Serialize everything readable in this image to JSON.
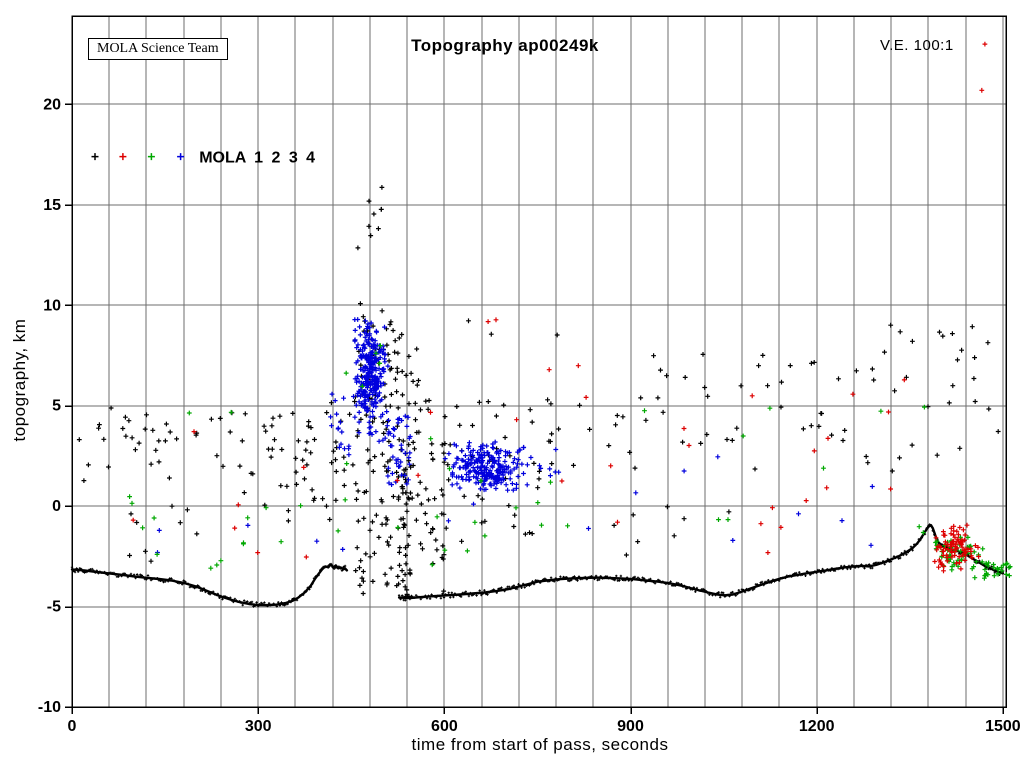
{
  "chart_data": {
    "type": "scatter",
    "title": "Topography ap00249k",
    "xlabel": "time from start of pass, seconds",
    "ylabel": "topography, km",
    "xlim": [
      0,
      1505
    ],
    "ylim": [
      -10,
      24.4
    ],
    "x_ticks": [
      0,
      300,
      600,
      900,
      1200,
      1500
    ],
    "y_ticks": [
      -10,
      -5,
      0,
      5,
      10,
      15,
      20
    ],
    "x_grid_step_seconds": 60,
    "y_grid_step_km": 5,
    "grid": true,
    "marker": "plus",
    "annotations": {
      "ve_label": "V.E. 100:1",
      "credit_box": "MOLA Science Team"
    },
    "legend": {
      "label": "MOLA 1 2 3 4",
      "marker_positions_t": [
        37,
        82,
        128,
        175
      ],
      "marker_z": 17.4,
      "text_t": 205,
      "series": [
        {
          "name": "MOLA 1",
          "color": "#000000"
        },
        {
          "name": "MOLA 2",
          "color": "#dd0000"
        },
        {
          "name": "MOLA 3",
          "color": "#00a800"
        },
        {
          "name": "MOLA 4",
          "color": "#0000dd"
        }
      ]
    },
    "ground_profile": {
      "series": "MOLA 1",
      "color": "#000000",
      "segments": [
        [
          [
            0,
            -3.15
          ],
          [
            20,
            -3.2
          ],
          [
            40,
            -3.28
          ],
          [
            60,
            -3.35
          ],
          [
            80,
            -3.42
          ],
          [
            100,
            -3.5
          ],
          [
            120,
            -3.57
          ],
          [
            140,
            -3.63
          ],
          [
            160,
            -3.7
          ],
          [
            180,
            -3.82
          ],
          [
            200,
            -4.0
          ],
          [
            220,
            -4.25
          ],
          [
            240,
            -4.5
          ],
          [
            255,
            -4.65
          ],
          [
            270,
            -4.78
          ],
          [
            285,
            -4.87
          ],
          [
            300,
            -4.92
          ],
          [
            315,
            -4.93
          ],
          [
            330,
            -4.9
          ],
          [
            345,
            -4.82
          ],
          [
            355,
            -4.72
          ],
          [
            365,
            -4.55
          ],
          [
            375,
            -4.3
          ],
          [
            385,
            -3.95
          ],
          [
            392,
            -3.6
          ],
          [
            398,
            -3.35
          ],
          [
            403,
            -3.15
          ],
          [
            408,
            -3.0
          ],
          [
            413,
            -3.05
          ],
          [
            417,
            -2.9
          ],
          [
            421,
            -3.05
          ],
          [
            425,
            -2.95
          ],
          [
            429,
            -3.1
          ],
          [
            433,
            -3.05
          ],
          [
            437,
            -3.15
          ],
          [
            440,
            -3.1
          ],
          [
            443,
            -3.2
          ]
        ],
        [
          [
            527,
            -4.55
          ],
          [
            545,
            -4.58
          ],
          [
            565,
            -4.52
          ],
          [
            585,
            -4.48
          ],
          [
            605,
            -4.44
          ],
          [
            625,
            -4.4
          ],
          [
            645,
            -4.35
          ],
          [
            665,
            -4.3
          ],
          [
            685,
            -4.22
          ],
          [
            705,
            -4.12
          ],
          [
            720,
            -4.0
          ],
          [
            735,
            -3.88
          ],
          [
            750,
            -3.76
          ],
          [
            765,
            -3.7
          ],
          [
            785,
            -3.64
          ],
          [
            805,
            -3.6
          ],
          [
            825,
            -3.58
          ],
          [
            845,
            -3.56
          ],
          [
            865,
            -3.58
          ],
          [
            885,
            -3.6
          ],
          [
            905,
            -3.64
          ],
          [
            925,
            -3.7
          ],
          [
            945,
            -3.76
          ],
          [
            965,
            -3.85
          ],
          [
            985,
            -3.98
          ],
          [
            1005,
            -4.15
          ],
          [
            1025,
            -4.3
          ],
          [
            1040,
            -4.4
          ],
          [
            1052,
            -4.44
          ],
          [
            1065,
            -4.4
          ],
          [
            1080,
            -4.25
          ],
          [
            1095,
            -4.08
          ],
          [
            1110,
            -3.92
          ],
          [
            1125,
            -3.76
          ],
          [
            1140,
            -3.62
          ],
          [
            1155,
            -3.5
          ],
          [
            1170,
            -3.42
          ],
          [
            1185,
            -3.34
          ],
          [
            1200,
            -3.27
          ],
          [
            1215,
            -3.2
          ],
          [
            1230,
            -3.12
          ],
          [
            1245,
            -3.05
          ],
          [
            1260,
            -3.0
          ],
          [
            1272,
            -2.97
          ],
          [
            1284,
            -3.0
          ],
          [
            1296,
            -2.92
          ],
          [
            1308,
            -2.8
          ],
          [
            1320,
            -2.65
          ],
          [
            1332,
            -2.5
          ],
          [
            1344,
            -2.3
          ],
          [
            1354,
            -2.1
          ],
          [
            1362,
            -1.85
          ],
          [
            1368,
            -1.6
          ],
          [
            1373,
            -1.35
          ],
          [
            1377,
            -1.15
          ],
          [
            1381,
            -1.0
          ],
          [
            1384,
            -0.95
          ],
          [
            1387,
            -1.1
          ],
          [
            1391,
            -1.45
          ],
          [
            1395,
            -1.75
          ],
          [
            1400,
            -1.95
          ],
          [
            1408,
            -2.05
          ],
          [
            1416,
            -2.15
          ],
          [
            1424,
            -2.2
          ],
          [
            1432,
            -2.3
          ],
          [
            1440,
            -2.4
          ],
          [
            1448,
            -2.55
          ],
          [
            1456,
            -2.7
          ],
          [
            1464,
            -2.85
          ],
          [
            1472,
            -3.0
          ],
          [
            1480,
            -3.1
          ],
          [
            1490,
            -3.25
          ],
          [
            1500,
            -3.35
          ]
        ]
      ]
    },
    "clusters": [
      {
        "series": "MOLA 1",
        "dist": "u",
        "t": [
          10,
          450
        ],
        "z": [
          1.9,
          4.9
        ],
        "n": 55
      },
      {
        "series": "MOLA 1",
        "dist": "u",
        "t": [
          15,
          450
        ],
        "z": [
          -0.5,
          1.9
        ],
        "n": 10
      },
      {
        "series": "MOLA 1",
        "dist": "u",
        "t": [
          60,
          260
        ],
        "z": [
          -2.8,
          -0.8
        ],
        "n": 6
      },
      {
        "series": "MOLA 1",
        "dist": "u",
        "t": [
          300,
          455
        ],
        "z": [
          -1.0,
          5.2
        ],
        "n": 30
      },
      {
        "series": "MOLA 1",
        "dist": "u",
        "t": [
          455,
          560
        ],
        "z": [
          -4.4,
          9.5
        ],
        "n": 150
      },
      {
        "series": "MOLA 1",
        "dist": "u",
        "t": [
          458,
          500
        ],
        "z": [
          9.5,
          16.0
        ],
        "n": 11
      },
      {
        "series": "MOLA 1",
        "dist": "u",
        "t": [
          525,
          545
        ],
        "z": [
          -4.5,
          2.0
        ],
        "n": 35
      },
      {
        "series": "MOLA 1",
        "dist": "u",
        "t": [
          555,
          600
        ],
        "z": [
          -4.4,
          3.5
        ],
        "n": 30
      },
      {
        "series": "MOLA 1",
        "dist": "u",
        "t": [
          600,
          760
        ],
        "z": [
          -2.0,
          5.2
        ],
        "n": 30
      },
      {
        "series": "MOLA 1",
        "dist": "u",
        "t": [
          560,
          1500
        ],
        "z": [
          1.6,
          5.4
        ],
        "n": 65
      },
      {
        "series": "MOLA 1",
        "dist": "u",
        "t": [
          900,
          1500
        ],
        "z": [
          5.4,
          7.6
        ],
        "n": 25
      },
      {
        "series": "MOLA 1",
        "dist": "u",
        "t": [
          1250,
          1480
        ],
        "z": [
          7.6,
          9.4
        ],
        "n": 10
      },
      {
        "series": "MOLA 1",
        "dist": "u",
        "t": [
          780,
          1100
        ],
        "z": [
          -3.0,
          0.0
        ],
        "n": 8
      },
      {
        "series": "MOLA 1",
        "dist": "u",
        "t": [
          600,
          900
        ],
        "z": [
          8.5,
          9.5
        ],
        "n": 3
      },
      {
        "series": "MOLA 2",
        "dist": "u",
        "t": [
          40,
          1360
        ],
        "z": [
          -3.0,
          5.0
        ],
        "n": 26
      },
      {
        "series": "MOLA 2",
        "dist": "u",
        "t": [
          600,
          1350
        ],
        "z": [
          5.0,
          7.0
        ],
        "n": 6
      },
      {
        "series": "MOLA 2",
        "dist": "u",
        "t": [
          660,
          720
        ],
        "z": [
          8.9,
          9.4
        ],
        "n": 2
      },
      {
        "series": "MOLA 2",
        "dist": "g",
        "ct": 1420,
        "cz": -2.1,
        "st": 18,
        "sz": 0.55,
        "n": 90,
        "clip_t": [
          1388,
          1462
        ],
        "clip_z": [
          -3.4,
          -0.9
        ]
      },
      {
        "series": "MOLA 3",
        "dist": "u",
        "t": [
          30,
          1380
        ],
        "z": [
          -2.0,
          5.2
        ],
        "n": 30
      },
      {
        "series": "MOLA 3",
        "dist": "u",
        "t": [
          80,
          300
        ],
        "z": [
          -3.3,
          -0.5
        ],
        "n": 8
      },
      {
        "series": "MOLA 3",
        "dist": "u",
        "t": [
          560,
          800
        ],
        "z": [
          -3.2,
          0.0
        ],
        "n": 6
      },
      {
        "series": "MOLA 3",
        "dist": "u",
        "t": [
          440,
          520
        ],
        "z": [
          5.5,
          9.0
        ],
        "n": 5
      },
      {
        "series": "MOLA 3",
        "dist": "g",
        "ct": 1425,
        "cz": -2.5,
        "st": 20,
        "sz": 0.5,
        "n": 55,
        "clip_t": [
          1390,
          1468
        ],
        "clip_z": [
          -3.6,
          -1.2
        ]
      },
      {
        "series": "MOLA 3",
        "dist": "u",
        "t": [
          1468,
          1512
        ],
        "z": [
          -3.6,
          -2.8
        ],
        "n": 26
      },
      {
        "series": "MOLA 4",
        "dist": "g",
        "ct": 478,
        "cz": 6.6,
        "st": 12,
        "sz": 1.2,
        "n": 230,
        "clip_t": [
          452,
          512
        ],
        "clip_z": [
          3.4,
          9.3
        ]
      },
      {
        "series": "MOLA 4",
        "dist": "u",
        "t": [
          455,
          512
        ],
        "z": [
          3.2,
          9.2
        ],
        "n": 50
      },
      {
        "series": "MOLA 4",
        "dist": "u",
        "t": [
          508,
          545
        ],
        "z": [
          0.8,
          4.6
        ],
        "n": 40
      },
      {
        "series": "MOLA 4",
        "dist": "g",
        "ct": 668,
        "cz": 1.9,
        "st": 28,
        "sz": 0.55,
        "n": 190,
        "clip_t": [
          600,
          728
        ],
        "clip_z": [
          0.7,
          3.2
        ]
      },
      {
        "series": "MOLA 4",
        "dist": "u",
        "t": [
          600,
          730
        ],
        "z": [
          0.7,
          3.2
        ],
        "n": 40
      },
      {
        "series": "MOLA 4",
        "dist": "u",
        "t": [
          415,
          452
        ],
        "z": [
          2.8,
          5.6
        ],
        "n": 14
      },
      {
        "series": "MOLA 4",
        "dist": "u",
        "t": [
          100,
          1320
        ],
        "z": [
          -3.0,
          5.5
        ],
        "n": 20
      },
      {
        "series": "MOLA 4",
        "dist": "u",
        "t": [
          730,
          790
        ],
        "z": [
          1.0,
          3.0
        ],
        "n": 10
      }
    ],
    "outlier_points": [
      {
        "series": "MOLA 2",
        "t": 1471,
        "z": 23.0
      },
      {
        "series": "MOLA 2",
        "t": 1466,
        "z": 20.7
      }
    ]
  }
}
